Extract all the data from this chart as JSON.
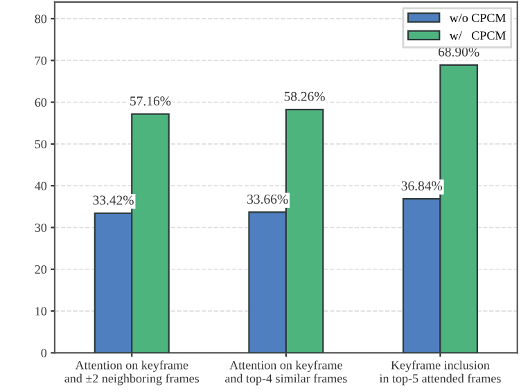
{
  "chart_data": {
    "type": "bar",
    "categories": [
      "Attention on keyframe\nand ±2 neighboring frames",
      "Attention on keyframe\nand top-4 similar frames",
      "Keyframe inclusion\nin top-5 attended frames"
    ],
    "series": [
      {
        "name": "w/o CPCM",
        "color": "#4f7fbf",
        "values": [
          33.42,
          33.66,
          36.84
        ],
        "value_labels": [
          "33.42%",
          "33.66%",
          "36.84%"
        ]
      },
      {
        "name": "w/   CPCM",
        "color": "#4db47e",
        "values": [
          57.16,
          58.26,
          68.9
        ],
        "value_labels": [
          "57.16%",
          "58.26%",
          "68.90%"
        ]
      }
    ],
    "ylim": [
      0,
      84
    ],
    "yticks": [
      0,
      10,
      20,
      30,
      40,
      50,
      60,
      70,
      80
    ],
    "grid": "y",
    "legend": "top right"
  }
}
